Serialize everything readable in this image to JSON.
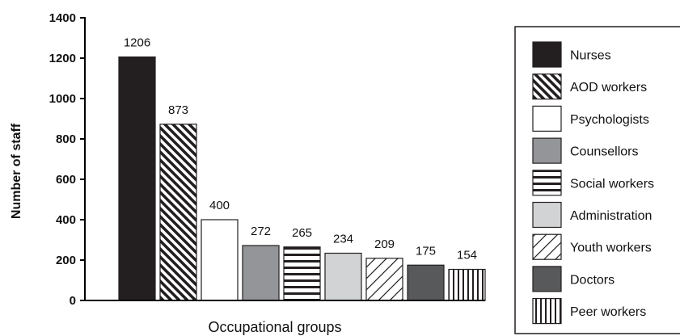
{
  "chart_data": {
    "type": "bar",
    "title": "",
    "xlabel": "Occupational groups",
    "ylabel": "Number of staff",
    "ylim": [
      0,
      1400
    ],
    "yticks": [
      0,
      200,
      400,
      600,
      800,
      1000,
      1200,
      1400
    ],
    "grid": false,
    "legend_position": "right",
    "categories": [
      "Nurses",
      "AOD workers",
      "Psychologists",
      "Counsellors",
      "Social workers",
      "Administration",
      "Youth workers",
      "Doctors",
      "Peer workers"
    ],
    "values": [
      1206,
      873,
      400,
      272,
      265,
      234,
      209,
      175,
      154
    ],
    "data_labels": [
      "1206",
      "873",
      "400",
      "272",
      "265",
      "234",
      "209",
      "175",
      "154"
    ],
    "fills": [
      {
        "pattern": "solid",
        "color": "#231f20"
      },
      {
        "pattern": "diagonal-down",
        "color": "#231f20"
      },
      {
        "pattern": "solid",
        "color": "#ffffff"
      },
      {
        "pattern": "solid",
        "color": "#939598"
      },
      {
        "pattern": "horizontal",
        "color": "#231f20"
      },
      {
        "pattern": "solid",
        "color": "#d1d3d4"
      },
      {
        "pattern": "diagonal-up",
        "color": "#231f20"
      },
      {
        "pattern": "solid",
        "color": "#58595b"
      },
      {
        "pattern": "vertical",
        "color": "#231f20"
      }
    ]
  }
}
